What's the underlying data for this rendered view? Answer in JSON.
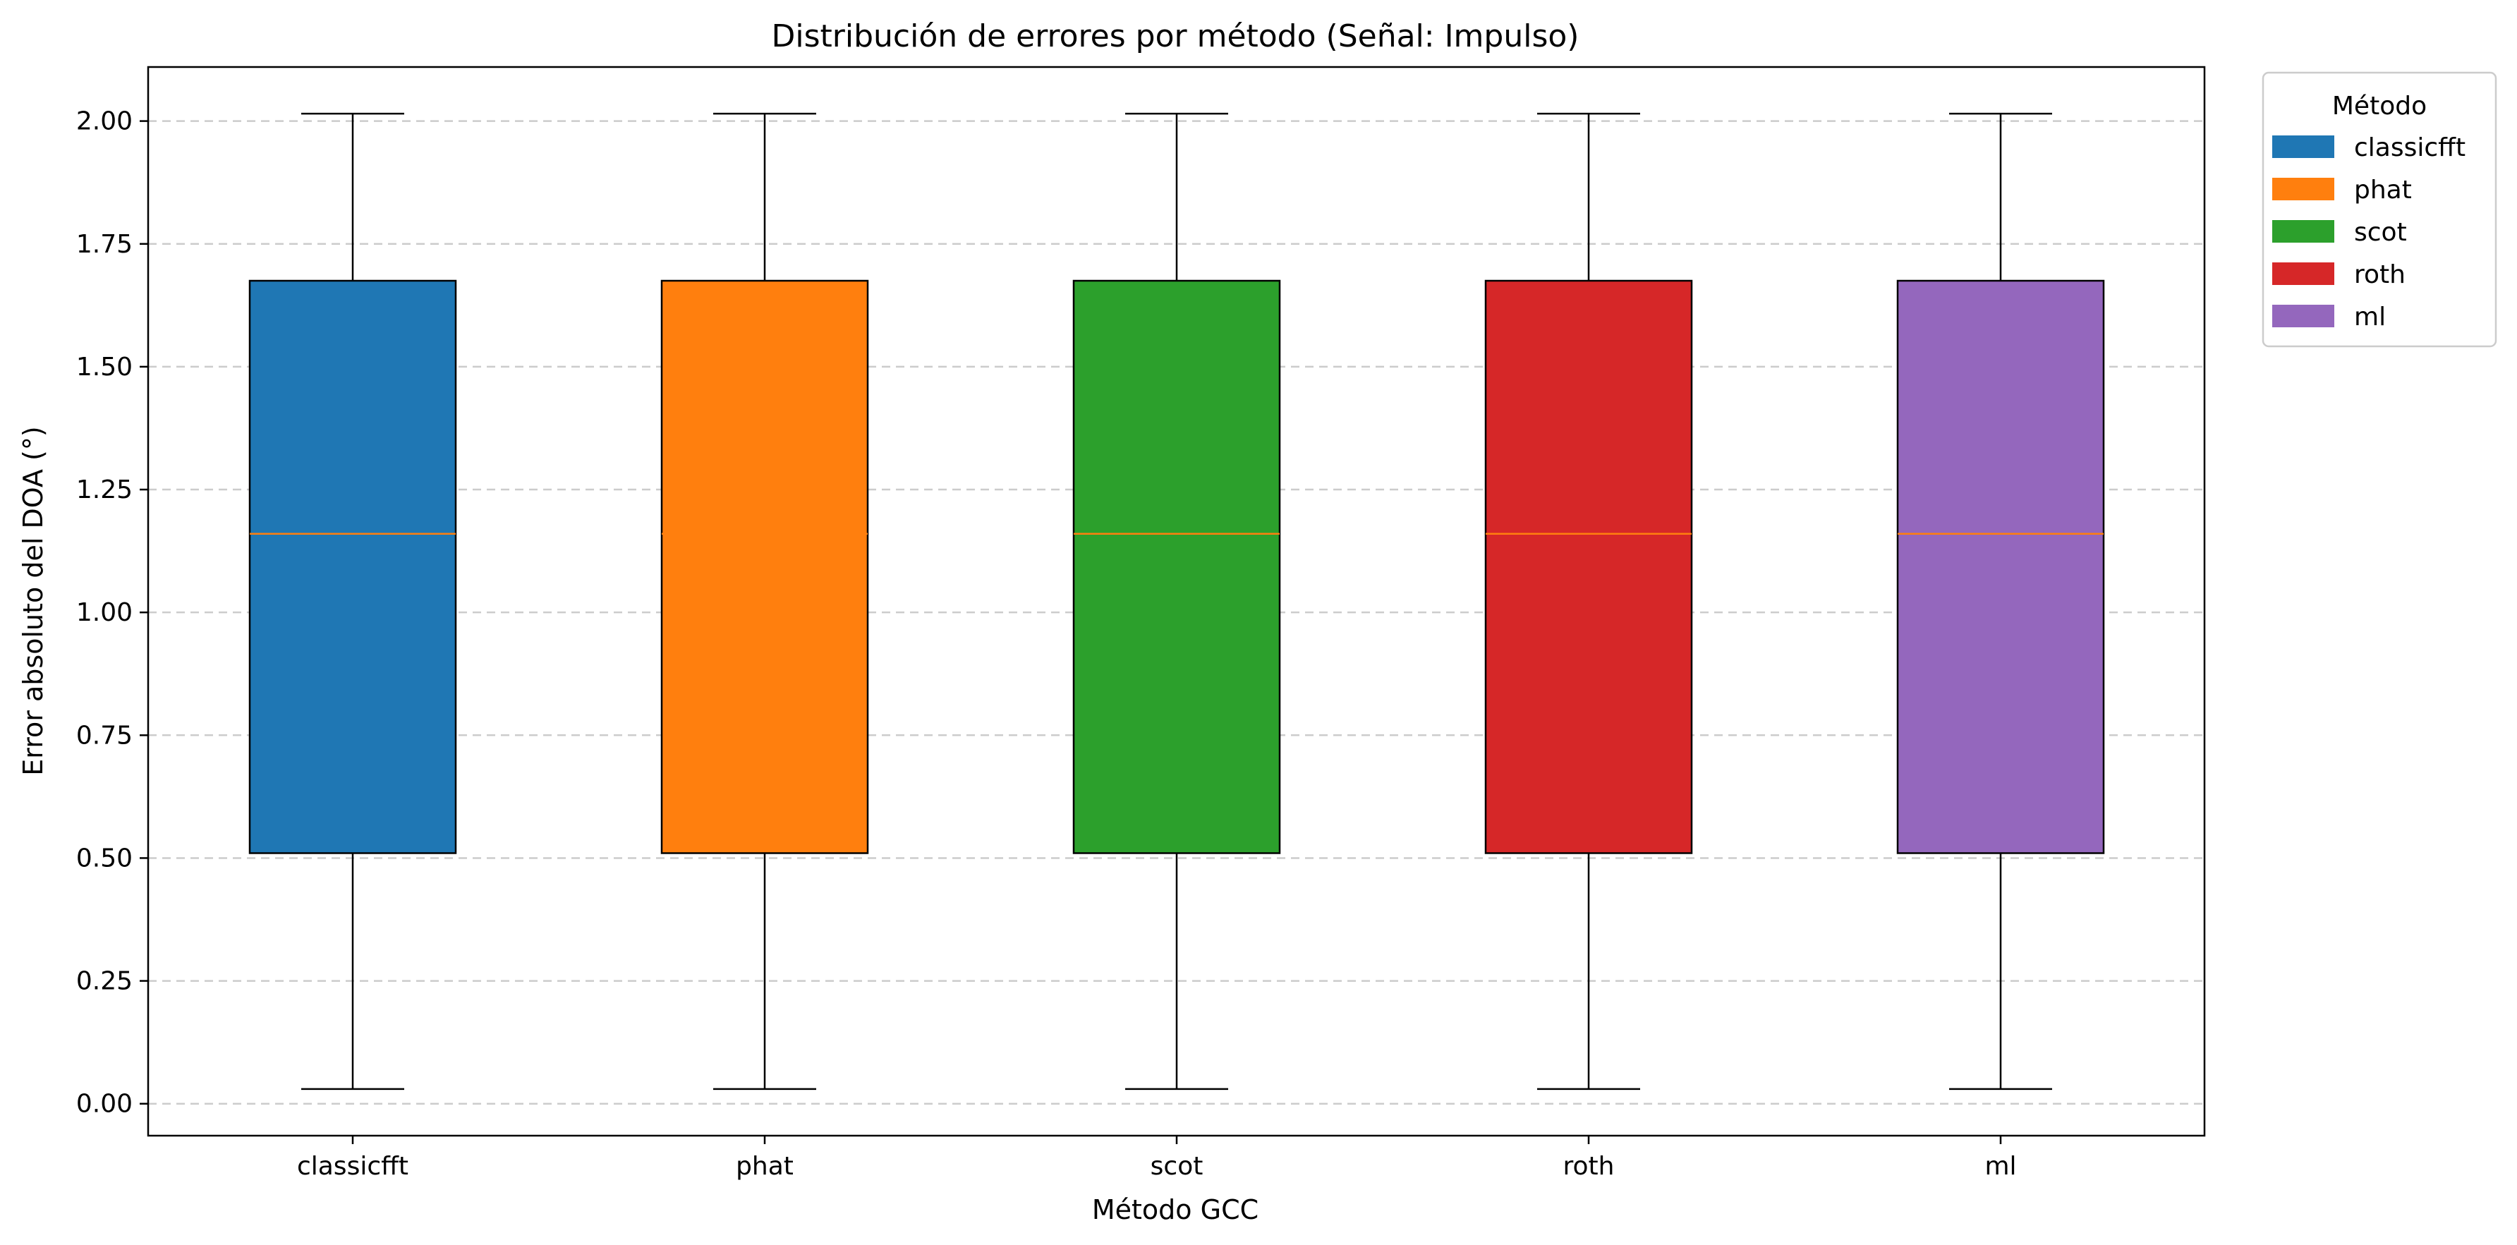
{
  "chart_data": {
    "type": "box",
    "title": "Distribución de errores por método (Señal: Impulso)",
    "xlabel": "Método GCC",
    "ylabel": "Error absoluto del DOA (°)",
    "ylim": [
      -0.065,
      2.11
    ],
    "yticks": [
      0.0,
      0.25,
      0.5,
      0.75,
      1.0,
      1.25,
      1.5,
      1.75,
      2.0
    ],
    "ytick_labels": [
      "0.00",
      "0.25",
      "0.50",
      "0.75",
      "1.00",
      "1.25",
      "1.50",
      "1.75",
      "2.00"
    ],
    "grid": "y-dashed",
    "categories": [
      "classicfft",
      "phat",
      "scot",
      "roth",
      "ml"
    ],
    "boxes": [
      {
        "category": "classicfft",
        "whisker_low": 0.03,
        "q1": 0.51,
        "median": 1.16,
        "q3": 1.675,
        "whisker_high": 2.015,
        "color": "#1f77b4"
      },
      {
        "category": "phat",
        "whisker_low": 0.03,
        "q1": 0.51,
        "median": 1.16,
        "q3": 1.675,
        "whisker_high": 2.015,
        "color": "#ff7f0e"
      },
      {
        "category": "scot",
        "whisker_low": 0.03,
        "q1": 0.51,
        "median": 1.16,
        "q3": 1.675,
        "whisker_high": 2.015,
        "color": "#2ca02c"
      },
      {
        "category": "roth",
        "whisker_low": 0.03,
        "q1": 0.51,
        "median": 1.16,
        "q3": 1.675,
        "whisker_high": 2.015,
        "color": "#d62728"
      },
      {
        "category": "ml",
        "whisker_low": 0.03,
        "q1": 0.51,
        "median": 1.16,
        "q3": 1.675,
        "whisker_high": 2.015,
        "color": "#9467bd"
      }
    ],
    "median_color": "#ff7f0e",
    "legend": {
      "title": "Método",
      "placement": "outside-top-right",
      "entries": [
        {
          "label": "classicfft",
          "color": "#1f77b4"
        },
        {
          "label": "phat",
          "color": "#ff7f0e"
        },
        {
          "label": "scot",
          "color": "#2ca02c"
        },
        {
          "label": "roth",
          "color": "#d62728"
        },
        {
          "label": "ml",
          "color": "#9467bd"
        }
      ]
    }
  }
}
